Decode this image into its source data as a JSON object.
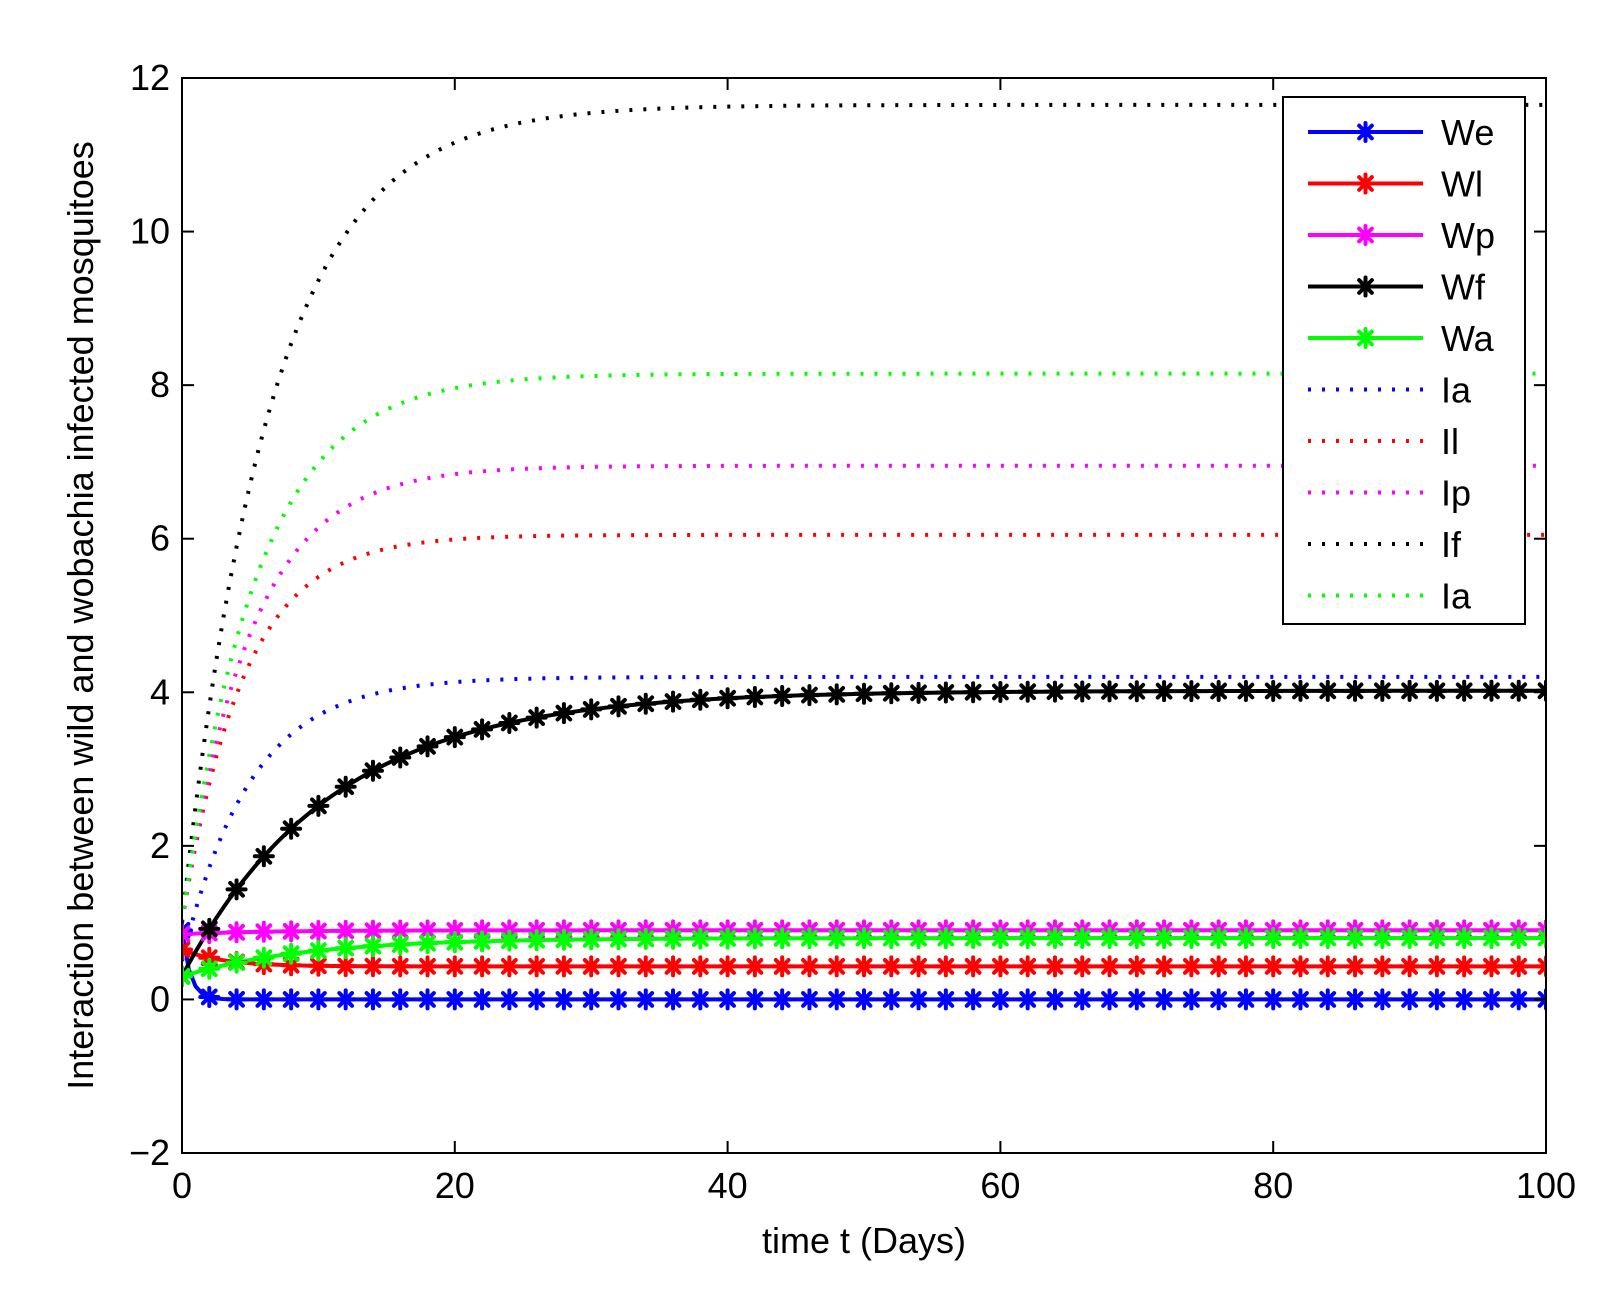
{
  "chart_data": {
    "type": "line",
    "title": "",
    "xlabel": "time t (Days)",
    "ylabel": "Interaction between wild and wobachia infected mosquitoes",
    "xlim": [
      0,
      100
    ],
    "ylim": [
      -2,
      12
    ],
    "xticks": [
      0,
      20,
      40,
      60,
      80,
      100
    ],
    "xtick_labels": [
      "0",
      "20",
      "40",
      "60",
      "80",
      "100"
    ],
    "yticks": [
      -2,
      0,
      2,
      4,
      6,
      8,
      10,
      12
    ],
    "ytick_labels": [
      "−2",
      "0",
      "2",
      "4",
      "6",
      "8",
      "10",
      "12"
    ],
    "grid": false,
    "legend_position": "top-right",
    "series": [
      {
        "name": "We",
        "color": "#0000ff",
        "style": "solid-star",
        "start": 0.9,
        "end": 0.0,
        "tau": 0.6
      },
      {
        "name": "Wl",
        "color": "#ff0000",
        "style": "solid-star",
        "start": 0.65,
        "end": 0.43,
        "tau": 3
      },
      {
        "name": "Wp",
        "color": "#ff00ff",
        "style": "solid-star",
        "start": 0.85,
        "end": 0.9,
        "tau": 6
      },
      {
        "name": "Wf",
        "color": "#000000",
        "style": "solid-star",
        "start": 0.3,
        "end": 4.02,
        "tau": 11
      },
      {
        "name": "Wa",
        "color": "#00ff00",
        "style": "solid-star",
        "start": 0.3,
        "end": 0.8,
        "tau": 9
      },
      {
        "name": "Ia",
        "color": "#0000ff",
        "style": "dotted",
        "start": 0.5,
        "end": 4.2,
        "tau": 5
      },
      {
        "name": "Il",
        "color": "#ff0000",
        "style": "dotted",
        "start": 1.0,
        "end": 6.05,
        "tau": 4.5
      },
      {
        "name": "Ip",
        "color": "#ff00ff",
        "style": "dotted",
        "start": 1.0,
        "end": 6.95,
        "tau": 5
      },
      {
        "name": "If",
        "color": "#000000",
        "style": "dotted",
        "start": 1.0,
        "end": 11.65,
        "tau": 6.5
      },
      {
        "name": "Ia",
        "color": "#00ff00",
        "style": "dotted",
        "start": 1.0,
        "end": 8.15,
        "tau": 5.5
      }
    ]
  }
}
